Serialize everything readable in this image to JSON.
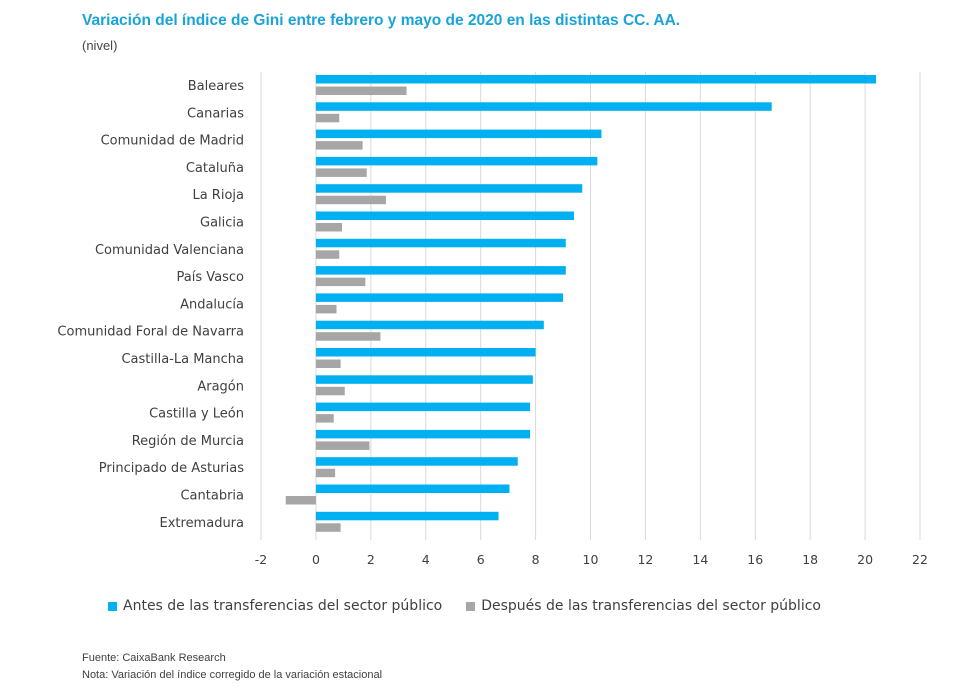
{
  "header": {
    "title": "Variación del índice de Gini entre febrero y mayo de 2020 en las distintas CC. AA.",
    "subtitle": "(nivel)"
  },
  "footer": {
    "source": "Fuente: CaixaBank Research",
    "note": "Nota: Variación del índice corregido de la variación estacional"
  },
  "colors": {
    "before": "#00b0f0",
    "after": "#a6a6a6",
    "grid": "#d9d9d9"
  },
  "chart_data": {
    "type": "bar",
    "orientation": "horizontal",
    "title": "Variación del índice de Gini entre febrero y mayo de 2020 en las distintas CC. AA.",
    "subtitle": "(nivel)",
    "categories": [
      "Baleares",
      "Canarias",
      "Comunidad de Madrid",
      "Cataluña",
      "La Rioja",
      "Galicia",
      "Comunidad Valenciana",
      "País Vasco",
      "Andalucía",
      "Comunidad Foral de Navarra",
      "Castilla-La Mancha",
      "Aragón",
      "Castilla y León",
      "Región de Murcia",
      "Principado de Asturias",
      "Cantabria",
      "Extremadura"
    ],
    "series": [
      {
        "name": "Antes de las transferencias del sector público",
        "values": [
          20.4,
          16.6,
          10.4,
          10.25,
          9.7,
          9.4,
          9.1,
          9.1,
          9.0,
          8.3,
          8.0,
          7.9,
          7.8,
          7.8,
          7.35,
          7.05,
          6.65
        ]
      },
      {
        "name": "Después de las transferencias del sector público",
        "values": [
          3.3,
          0.85,
          1.7,
          1.85,
          2.55,
          0.95,
          0.85,
          1.8,
          0.75,
          2.35,
          0.9,
          1.05,
          0.65,
          1.95,
          0.7,
          -1.1,
          0.9
        ]
      }
    ],
    "xlim": [
      -2,
      22
    ],
    "xticks": [
      -2,
      0,
      2,
      4,
      6,
      8,
      10,
      12,
      14,
      16,
      18,
      20,
      22
    ],
    "xlabel": "",
    "ylabel": "",
    "grid": true,
    "legend_position": "bottom"
  }
}
